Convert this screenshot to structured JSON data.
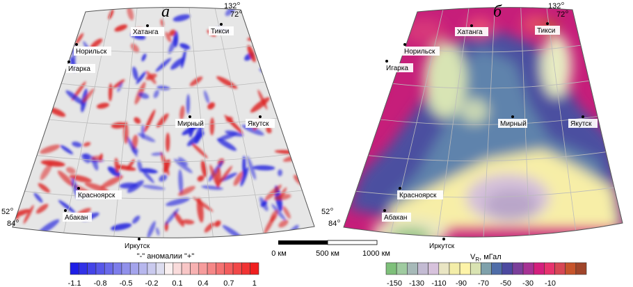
{
  "panels": [
    {
      "letter": "а",
      "corner_labels": {
        "top_lon": "132",
        "top_lat": "72",
        "bottom_lat": "52",
        "bottom_lon": "84"
      },
      "cities": [
        "Хатанга",
        "Тикси",
        "Норильск",
        "Игарка",
        "Мирный",
        "Якутск",
        "Красноярск",
        "Абакан",
        "Иркутск"
      ],
      "legend": {
        "title": "\"-\" аномалии \"+\"",
        "tick_labels": [
          "-1.1",
          "-0.8",
          "-0.5",
          "-0.2",
          "0.1",
          "0.4",
          "0.7",
          "1"
        ],
        "min": -1.1,
        "max": 1.0,
        "step": 0.1
      }
    },
    {
      "letter": "б",
      "corner_labels": {
        "top_lon": "132",
        "top_lat": "72",
        "bottom_lat": "52",
        "bottom_lon": "84"
      },
      "cities": [
        "Хатанга",
        "Тикси",
        "Норильск",
        "Игарка",
        "Мирный",
        "Якутск",
        "Красноярск",
        "Абакан",
        "Иркутск"
      ],
      "legend": {
        "title_main": "V",
        "title_sub": "R",
        "title_unit": ", мГал",
        "tick_labels": [
          "-150",
          "-130",
          "-110",
          "-90",
          "-70",
          "-50",
          "-30",
          "-10"
        ],
        "colors": [
          "#7ec07a",
          "#9fcba0",
          "#a6b9b8",
          "#c3bbd3",
          "#d7c2dc",
          "#e9e5c3",
          "#f3eda8",
          "#fdf3a8",
          "#d9e3b2",
          "#7fa1ab",
          "#4f6da8",
          "#4c49a0",
          "#7b3f9a",
          "#a73294",
          "#d41f7d",
          "#e7336e",
          "#d74755",
          "#c7542b",
          "#a0452a"
        ]
      }
    }
  ],
  "scale_bar": {
    "labels": [
      "0 км",
      "500 км",
      "1000 км"
    ]
  },
  "colors": {
    "negative": "#2222dd",
    "positive": "#dd2222",
    "graticule": "#bbbbbb",
    "frame": "#555555"
  }
}
